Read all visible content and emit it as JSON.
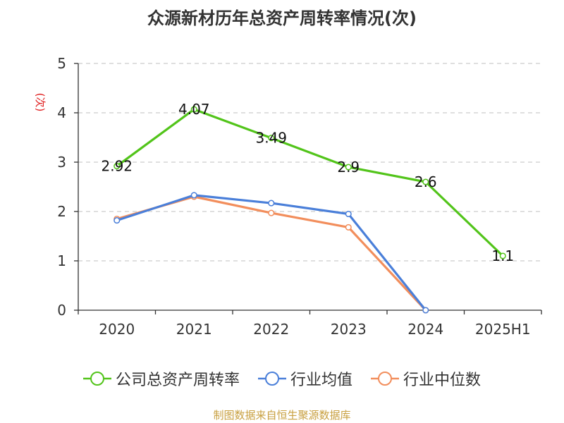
{
  "chart_data": {
    "type": "line",
    "title": "众源新材历年总资产周转率情况(次)",
    "ylabel": "(次)",
    "xlabel": "",
    "categories": [
      "2020",
      "2021",
      "2022",
      "2023",
      "2024",
      "2025H1"
    ],
    "ylim": [
      0,
      5
    ],
    "yticks": [
      "0",
      "1",
      "2",
      "3",
      "4",
      "5"
    ],
    "grid": true,
    "legend_position": "bottom",
    "series": [
      {
        "name": "公司总资产周转率",
        "color": "#52c41a",
        "values": [
          2.92,
          4.07,
          3.49,
          2.9,
          2.6,
          1.1
        ],
        "labels": [
          "2.92",
          "4.07",
          "3.49",
          "2.9",
          "2.6",
          "1.1"
        ],
        "show_labels": true
      },
      {
        "name": "行业均值",
        "color": "#4a7fd9",
        "values": [
          1.82,
          2.33,
          2.17,
          1.95,
          0,
          null
        ],
        "show_labels": false
      },
      {
        "name": "行业中位数",
        "color": "#f28e5c",
        "values": [
          1.85,
          2.3,
          1.97,
          1.68,
          0,
          null
        ],
        "show_labels": false
      }
    ]
  },
  "source_note": "制图数据来自恒生聚源数据库",
  "colors": {
    "title": "#333333",
    "ylabel": "#e02020",
    "source": "#c8a040",
    "grid": "#cccccc",
    "axis": "#333333"
  }
}
